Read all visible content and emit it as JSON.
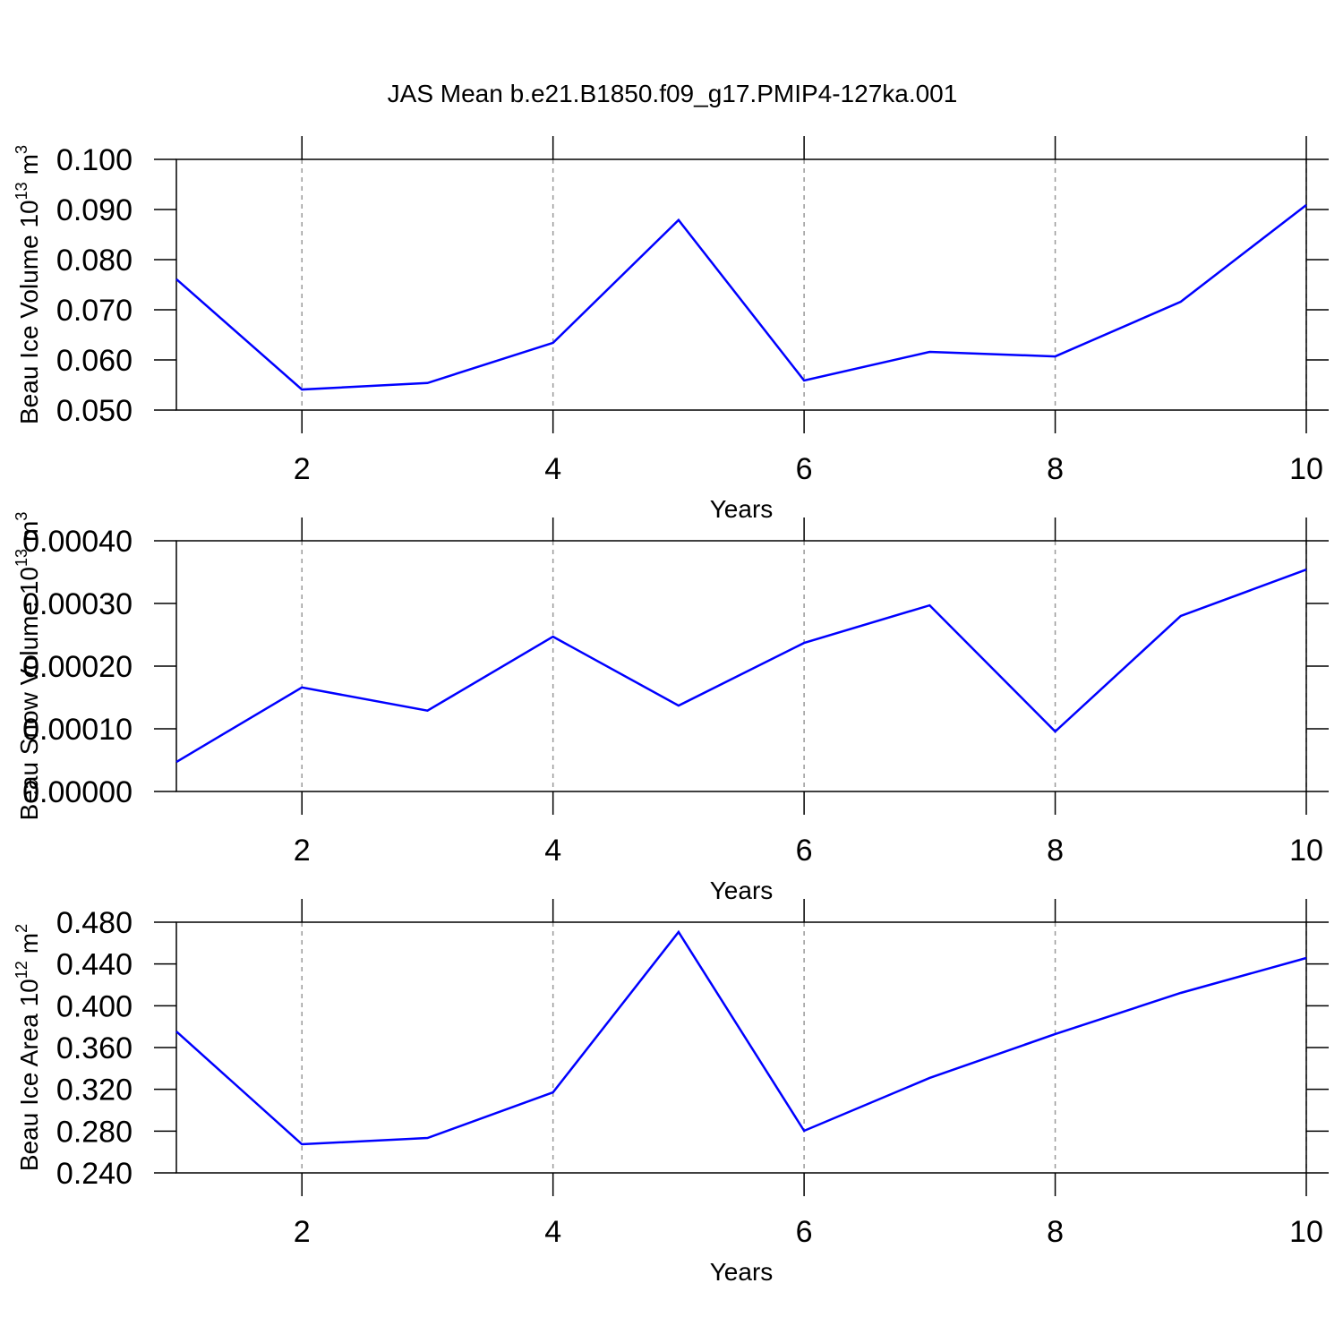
{
  "chart_data": [
    {
      "type": "line",
      "title": "JAS Mean b.e21.B1850.f09_g17.PMIP4-127ka.001",
      "x_label": "Years",
      "y_label": {
        "base": "Beau Ice Volume 10",
        "exp": "13",
        "unit": "m",
        "unit_exp": "3"
      },
      "x": [
        1,
        2,
        3,
        4,
        5,
        6,
        7,
        8,
        9,
        10
      ],
      "series": [
        {
          "color": "#0000ff",
          "values": [
            0.0761,
            0.0541,
            0.0554,
            0.0634,
            0.0879,
            0.0559,
            0.0616,
            0.0607,
            0.0716,
            0.0909
          ]
        }
      ],
      "xlim": [
        1,
        10
      ],
      "xticks": [
        2,
        4,
        6,
        8,
        10
      ],
      "ylim": [
        0.05,
        0.1
      ],
      "yticks": [
        {
          "value": 0.05,
          "label": "0.050"
        },
        {
          "value": 0.06,
          "label": "0.060"
        },
        {
          "value": 0.07,
          "label": "0.070"
        },
        {
          "value": 0.08,
          "label": "0.080"
        },
        {
          "value": 0.09,
          "label": "0.090"
        },
        {
          "value": 0.1,
          "label": "0.100"
        }
      ],
      "grid": true
    },
    {
      "type": "line",
      "x_label": "Years",
      "y_label": {
        "base": "Beau Snow Volume 10",
        "exp": "13",
        "unit": "m",
        "unit_exp": "3"
      },
      "x": [
        1,
        2,
        3,
        4,
        5,
        6,
        7,
        8,
        9,
        10
      ],
      "series": [
        {
          "color": "#0000ff",
          "values": [
            4.71e-05,
            0.000166,
            0.000129,
            0.000247,
            0.000137,
            0.000237,
            0.000297,
            9.57e-05,
            0.00028,
            0.000354
          ]
        }
      ],
      "xlim": [
        1,
        10
      ],
      "xticks": [
        2,
        4,
        6,
        8,
        10
      ],
      "ylim": [
        0,
        0.0004
      ],
      "yticks": [
        {
          "value": 0,
          "label": "0.00000"
        },
        {
          "value": 0.0001,
          "label": "0.00010"
        },
        {
          "value": 0.0002,
          "label": "0.00020"
        },
        {
          "value": 0.0003,
          "label": "0.00030"
        },
        {
          "value": 0.0004,
          "label": "0.00040"
        }
      ],
      "grid": true
    },
    {
      "type": "line",
      "x_label": "Years",
      "y_label": {
        "base": "Beau Ice Area 10",
        "exp": "12",
        "unit": "m",
        "unit_exp": "2"
      },
      "x": [
        1,
        2,
        3,
        4,
        5,
        6,
        7,
        8,
        9,
        10
      ],
      "series": [
        {
          "color": "#0000ff",
          "values": [
            0.3754,
            0.2674,
            0.2734,
            0.3171,
            0.4706,
            0.2803,
            0.3309,
            0.3729,
            0.4123,
            0.4457
          ]
        }
      ],
      "xlim": [
        1,
        10
      ],
      "xticks": [
        2,
        4,
        6,
        8,
        10
      ],
      "ylim": [
        0.24,
        0.48
      ],
      "yticks": [
        {
          "value": 0.24,
          "label": "0.240"
        },
        {
          "value": 0.28,
          "label": "0.280"
        },
        {
          "value": 0.32,
          "label": "0.320"
        },
        {
          "value": 0.36,
          "label": "0.360"
        },
        {
          "value": 0.4,
          "label": "0.400"
        },
        {
          "value": 0.44,
          "label": "0.440"
        },
        {
          "value": 0.48,
          "label": "0.480"
        }
      ],
      "grid": true
    }
  ]
}
